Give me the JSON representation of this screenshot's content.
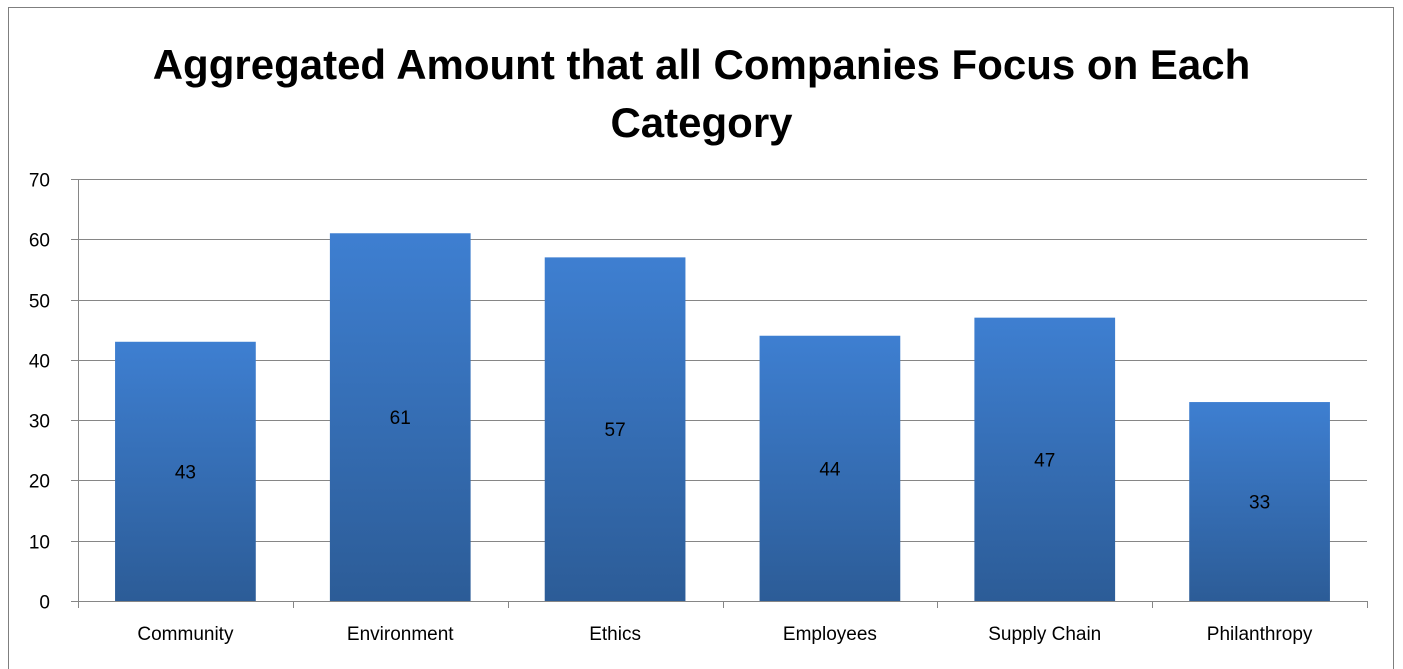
{
  "chart_data": {
    "type": "bar",
    "title_line1": "Aggregated Amount that all Companies Focus on Each",
    "title_line2": "Category",
    "categories": [
      "Community",
      "Environment",
      "Ethics",
      "Employees",
      "Supply Chain",
      "Philanthropy"
    ],
    "values": [
      43,
      61,
      57,
      44,
      47,
      33
    ],
    "ylim": [
      0,
      70
    ],
    "yticks": [
      0,
      10,
      20,
      30,
      40,
      50,
      60,
      70
    ],
    "grid": true,
    "legend": "none",
    "data_labels": "center",
    "colors": {
      "bar_top": "#3e7fd1",
      "bar_bottom": "#2c5c97",
      "grid": "#868686",
      "axis": "#868686",
      "text": "#000000"
    }
  }
}
